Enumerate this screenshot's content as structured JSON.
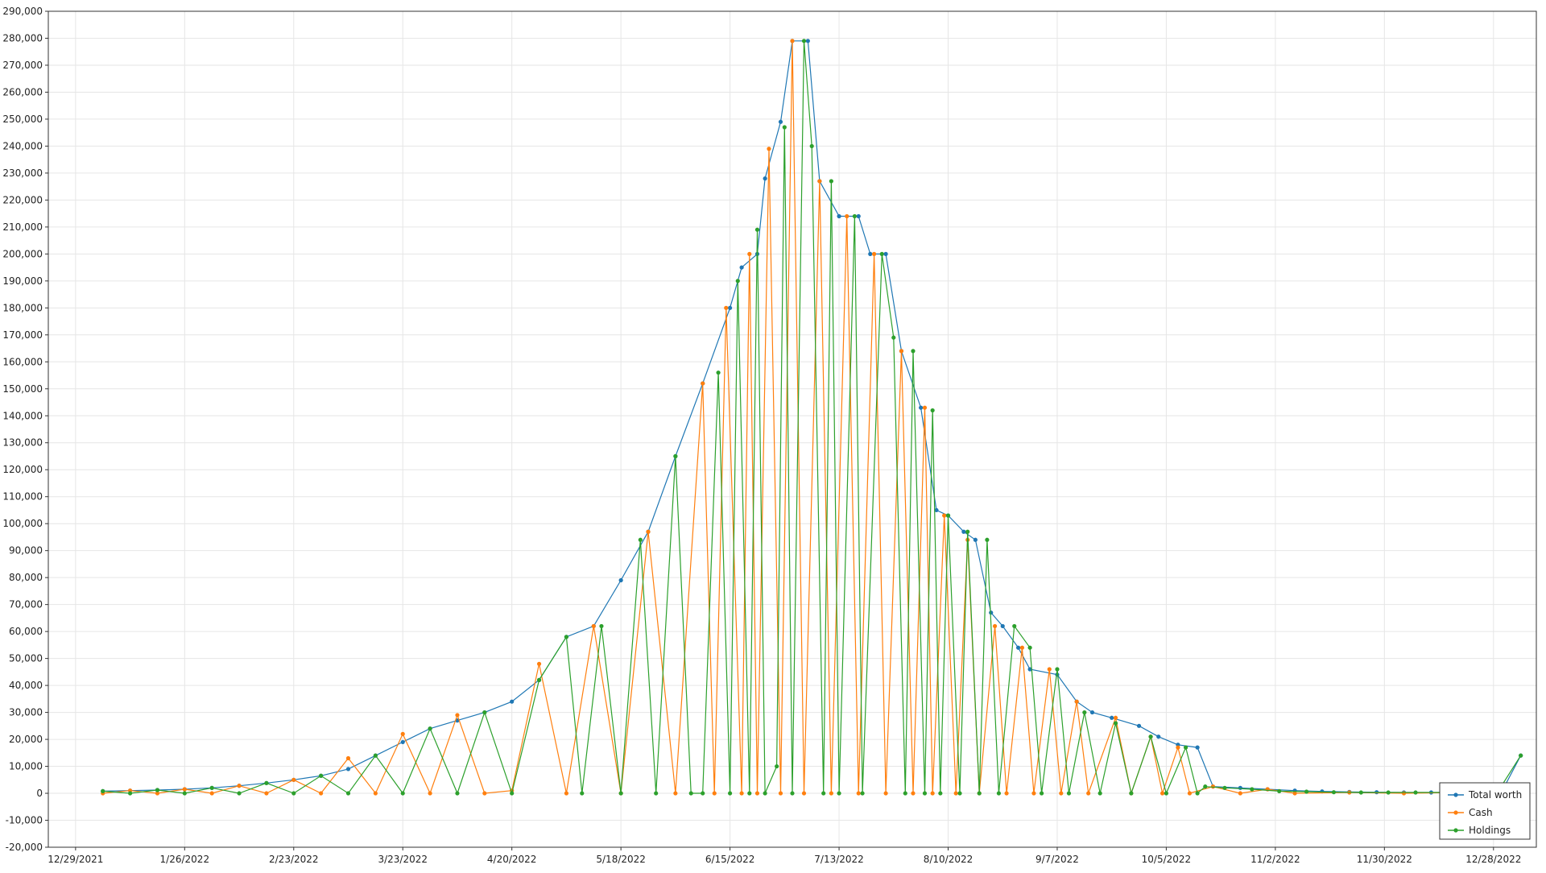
{
  "chart_data": {
    "type": "line",
    "title": "",
    "xlabel": "",
    "ylabel": "",
    "grid": true,
    "legend_position": "bottom-right",
    "ylim": [
      -20000,
      290000
    ],
    "xlim": [
      "2021-12-22",
      "2023-01-08"
    ],
    "y_ticks": [
      "290,000",
      "280,000",
      "270,000",
      "260,000",
      "250,000",
      "240,000",
      "230,000",
      "220,000",
      "210,000",
      "200,000",
      "190,000",
      "180,000",
      "170,000",
      "160,000",
      "150,000",
      "140,000",
      "130,000",
      "120,000",
      "110,000",
      "100,000",
      "90,000",
      "80,000",
      "70,000",
      "60,000",
      "50,000",
      "40,000",
      "30,000",
      "20,000",
      "10,000",
      "0",
      "-10,000",
      "-20,000"
    ],
    "y_tick_values": [
      290000,
      280000,
      270000,
      260000,
      250000,
      240000,
      230000,
      220000,
      210000,
      200000,
      190000,
      180000,
      170000,
      160000,
      150000,
      140000,
      130000,
      120000,
      110000,
      100000,
      90000,
      80000,
      70000,
      60000,
      50000,
      40000,
      30000,
      20000,
      10000,
      0,
      -10000,
      -20000
    ],
    "x_ticks": [
      "12/29/2021",
      "1/26/2022",
      "2/23/2022",
      "3/23/2022",
      "4/20/2022",
      "5/18/2022",
      "6/15/2022",
      "7/13/2022",
      "8/10/2022",
      "9/7/2022",
      "10/5/2022",
      "11/2/2022",
      "11/30/2022",
      "12/28/2022"
    ],
    "x_tick_dates": [
      "2021-12-29",
      "2022-01-26",
      "2022-02-23",
      "2022-03-23",
      "2022-04-20",
      "2022-05-18",
      "2022-06-15",
      "2022-07-13",
      "2022-08-10",
      "2022-09-07",
      "2022-10-05",
      "2022-11-02",
      "2022-11-30",
      "2022-12-28"
    ],
    "series": [
      {
        "name": "Total worth",
        "color": "#1f77b4",
        "points": [
          [
            "2022-01-05",
            800
          ],
          [
            "2022-01-12",
            1000
          ],
          [
            "2022-01-19",
            1200
          ],
          [
            "2022-01-26",
            1500
          ],
          [
            "2022-02-02",
            2000
          ],
          [
            "2022-02-09",
            2800
          ],
          [
            "2022-02-16",
            3800
          ],
          [
            "2022-02-23",
            5000
          ],
          [
            "2022-03-02",
            6500
          ],
          [
            "2022-03-09",
            9000
          ],
          [
            "2022-03-16",
            14000
          ],
          [
            "2022-03-23",
            19000
          ],
          [
            "2022-03-30",
            24000
          ],
          [
            "2022-04-06",
            27000
          ],
          [
            "2022-04-13",
            30000
          ],
          [
            "2022-04-20",
            34000
          ],
          [
            "2022-04-27",
            42000
          ],
          [
            "2022-05-04",
            58000
          ],
          [
            "2022-05-11",
            62000
          ],
          [
            "2022-05-18",
            79000
          ],
          [
            "2022-05-25",
            97000
          ],
          [
            "2022-06-01",
            125000
          ],
          [
            "2022-06-08",
            152000
          ],
          [
            "2022-06-15",
            180000
          ],
          [
            "2022-06-18",
            195000
          ],
          [
            "2022-06-22",
            200000
          ],
          [
            "2022-06-24",
            228000
          ],
          [
            "2022-06-28",
            249000
          ],
          [
            "2022-07-01",
            279000
          ],
          [
            "2022-07-05",
            279000
          ],
          [
            "2022-07-08",
            227000
          ],
          [
            "2022-07-13",
            214000
          ],
          [
            "2022-07-18",
            214000
          ],
          [
            "2022-07-21",
            200000
          ],
          [
            "2022-07-25",
            200000
          ],
          [
            "2022-07-29",
            164000
          ],
          [
            "2022-08-03",
            143000
          ],
          [
            "2022-08-07",
            105000
          ],
          [
            "2022-08-10",
            103000
          ],
          [
            "2022-08-14",
            97000
          ],
          [
            "2022-08-17",
            94000
          ],
          [
            "2022-08-21",
            67000
          ],
          [
            "2022-08-24",
            62000
          ],
          [
            "2022-08-28",
            54000
          ],
          [
            "2022-08-31",
            46000
          ],
          [
            "2022-09-07",
            44000
          ],
          [
            "2022-09-12",
            34000
          ],
          [
            "2022-09-16",
            30000
          ],
          [
            "2022-09-21",
            28000
          ],
          [
            "2022-09-28",
            25000
          ],
          [
            "2022-10-03",
            21000
          ],
          [
            "2022-10-08",
            18000
          ],
          [
            "2022-10-13",
            17000
          ],
          [
            "2022-10-17",
            2500
          ],
          [
            "2022-10-24",
            2000
          ],
          [
            "2022-10-31",
            1500
          ],
          [
            "2022-11-07",
            1000
          ],
          [
            "2022-11-14",
            700
          ],
          [
            "2022-11-21",
            500
          ],
          [
            "2022-11-28",
            400
          ],
          [
            "2022-12-05",
            300
          ],
          [
            "2022-12-12",
            300
          ],
          [
            "2022-12-19",
            300
          ],
          [
            "2022-12-26",
            300
          ],
          [
            "2022-12-30",
            300
          ],
          [
            "2023-01-04",
            14000
          ]
        ]
      },
      {
        "name": "Cash",
        "color": "#ff7f0e",
        "points": [
          [
            "2022-01-05",
            0
          ],
          [
            "2022-01-12",
            1000
          ],
          [
            "2022-01-19",
            0
          ],
          [
            "2022-01-26",
            1500
          ],
          [
            "2022-02-02",
            0
          ],
          [
            "2022-02-09",
            2800
          ],
          [
            "2022-02-16",
            0
          ],
          [
            "2022-02-23",
            5000
          ],
          [
            "2022-03-02",
            0
          ],
          [
            "2022-03-09",
            13000
          ],
          [
            "2022-03-16",
            0
          ],
          [
            "2022-03-23",
            22000
          ],
          [
            "2022-03-30",
            0
          ],
          [
            "2022-04-06",
            29000
          ],
          [
            "2022-04-13",
            0
          ],
          [
            "2022-04-20",
            1000
          ],
          [
            "2022-04-27",
            48000
          ],
          [
            "2022-05-04",
            0
          ],
          [
            "2022-05-11",
            62000
          ],
          [
            "2022-05-18",
            0
          ],
          [
            "2022-05-25",
            97000
          ],
          [
            "2022-06-01",
            0
          ],
          [
            "2022-06-08",
            152000
          ],
          [
            "2022-06-11",
            0
          ],
          [
            "2022-06-14",
            180000
          ],
          [
            "2022-06-18",
            0
          ],
          [
            "2022-06-20",
            200000
          ],
          [
            "2022-06-22",
            0
          ],
          [
            "2022-06-25",
            239000
          ],
          [
            "2022-06-28",
            0
          ],
          [
            "2022-07-01",
            279000
          ],
          [
            "2022-07-04",
            0
          ],
          [
            "2022-07-08",
            227000
          ],
          [
            "2022-07-11",
            0
          ],
          [
            "2022-07-15",
            214000
          ],
          [
            "2022-07-18",
            0
          ],
          [
            "2022-07-22",
            200000
          ],
          [
            "2022-07-25",
            0
          ],
          [
            "2022-07-29",
            164000
          ],
          [
            "2022-08-01",
            0
          ],
          [
            "2022-08-04",
            143000
          ],
          [
            "2022-08-06",
            0
          ],
          [
            "2022-08-09",
            103000
          ],
          [
            "2022-08-12",
            0
          ],
          [
            "2022-08-15",
            94000
          ],
          [
            "2022-08-18",
            0
          ],
          [
            "2022-08-22",
            62000
          ],
          [
            "2022-08-25",
            0
          ],
          [
            "2022-08-29",
            54000
          ],
          [
            "2022-09-01",
            0
          ],
          [
            "2022-09-05",
            46000
          ],
          [
            "2022-09-08",
            0
          ],
          [
            "2022-09-12",
            34000
          ],
          [
            "2022-09-15",
            0
          ],
          [
            "2022-09-22",
            28000
          ],
          [
            "2022-09-26",
            0
          ],
          [
            "2022-10-01",
            21000
          ],
          [
            "2022-10-04",
            0
          ],
          [
            "2022-10-08",
            17000
          ],
          [
            "2022-10-11",
            0
          ],
          [
            "2022-10-17",
            2500
          ],
          [
            "2022-10-24",
            0
          ],
          [
            "2022-10-31",
            1500
          ],
          [
            "2022-11-07",
            0
          ],
          [
            "2022-11-21",
            300
          ],
          [
            "2022-12-05",
            0
          ],
          [
            "2022-12-19",
            300
          ],
          [
            "2022-12-30",
            0
          ]
        ]
      },
      {
        "name": "Holdings",
        "color": "#2ca02c",
        "points": [
          [
            "2022-01-05",
            800
          ],
          [
            "2022-01-12",
            0
          ],
          [
            "2022-01-19",
            1200
          ],
          [
            "2022-01-26",
            0
          ],
          [
            "2022-02-02",
            2000
          ],
          [
            "2022-02-09",
            0
          ],
          [
            "2022-02-16",
            3800
          ],
          [
            "2022-02-23",
            0
          ],
          [
            "2022-03-02",
            6500
          ],
          [
            "2022-03-09",
            0
          ],
          [
            "2022-03-16",
            14000
          ],
          [
            "2022-03-23",
            0
          ],
          [
            "2022-03-30",
            24000
          ],
          [
            "2022-04-06",
            0
          ],
          [
            "2022-04-13",
            30000
          ],
          [
            "2022-04-20",
            0
          ],
          [
            "2022-04-27",
            42000
          ],
          [
            "2022-05-04",
            58000
          ],
          [
            "2022-05-08",
            0
          ],
          [
            "2022-05-13",
            62000
          ],
          [
            "2022-05-18",
            0
          ],
          [
            "2022-05-23",
            94000
          ],
          [
            "2022-05-27",
            0
          ],
          [
            "2022-06-01",
            125000
          ],
          [
            "2022-06-05",
            0
          ],
          [
            "2022-06-08",
            0
          ],
          [
            "2022-06-12",
            156000
          ],
          [
            "2022-06-15",
            0
          ],
          [
            "2022-06-17",
            190000
          ],
          [
            "2022-06-20",
            0
          ],
          [
            "2022-06-22",
            209000
          ],
          [
            "2022-06-24",
            0
          ],
          [
            "2022-06-27",
            10000
          ],
          [
            "2022-06-29",
            247000
          ],
          [
            "2022-07-01",
            0
          ],
          [
            "2022-07-04",
            279000
          ],
          [
            "2022-07-06",
            240000
          ],
          [
            "2022-07-09",
            0
          ],
          [
            "2022-07-11",
            227000
          ],
          [
            "2022-07-13",
            0
          ],
          [
            "2022-07-17",
            214000
          ],
          [
            "2022-07-19",
            0
          ],
          [
            "2022-07-24",
            200000
          ],
          [
            "2022-07-27",
            169000
          ],
          [
            "2022-07-30",
            0
          ],
          [
            "2022-08-01",
            164000
          ],
          [
            "2022-08-04",
            0
          ],
          [
            "2022-08-06",
            142000
          ],
          [
            "2022-08-08",
            0
          ],
          [
            "2022-08-10",
            103000
          ],
          [
            "2022-08-13",
            0
          ],
          [
            "2022-08-15",
            97000
          ],
          [
            "2022-08-18",
            0
          ],
          [
            "2022-08-20",
            94000
          ],
          [
            "2022-08-23",
            0
          ],
          [
            "2022-08-27",
            62000
          ],
          [
            "2022-08-31",
            54000
          ],
          [
            "2022-09-03",
            0
          ],
          [
            "2022-09-07",
            46000
          ],
          [
            "2022-09-10",
            0
          ],
          [
            "2022-09-14",
            30000
          ],
          [
            "2022-09-18",
            0
          ],
          [
            "2022-09-22",
            26000
          ],
          [
            "2022-09-26",
            0
          ],
          [
            "2022-10-01",
            21000
          ],
          [
            "2022-10-05",
            0
          ],
          [
            "2022-10-10",
            17000
          ],
          [
            "2022-10-13",
            0
          ],
          [
            "2022-10-15",
            2500
          ],
          [
            "2022-10-20",
            2000
          ],
          [
            "2022-10-27",
            1500
          ],
          [
            "2022-11-03",
            800
          ],
          [
            "2022-11-10",
            600
          ],
          [
            "2022-11-17",
            400
          ],
          [
            "2022-11-24",
            300
          ],
          [
            "2022-12-01",
            300
          ],
          [
            "2022-12-08",
            300
          ],
          [
            "2022-12-15",
            300
          ],
          [
            "2022-12-22",
            300
          ],
          [
            "2022-12-29",
            300
          ],
          [
            "2023-01-04",
            14000
          ]
        ]
      }
    ]
  }
}
